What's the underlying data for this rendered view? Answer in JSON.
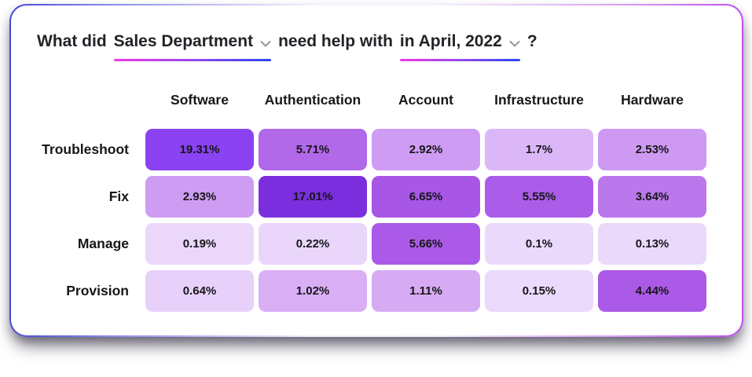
{
  "card": {
    "title": {
      "prefix": "What did",
      "department_dropdown": "Sales Department",
      "middle": "need help with",
      "period_dropdown": "in April, 2022",
      "suffix": "?"
    },
    "columns": [
      "Software",
      "Authentication",
      "Account",
      "Infrastructure",
      "Hardware"
    ],
    "rows": [
      {
        "label": "Troubleshoot",
        "cells": [
          {
            "text": "19.31%",
            "bg": "#8a42f2"
          },
          {
            "text": "5.71%",
            "bg": "#b169ea"
          },
          {
            "text": "2.92%",
            "bg": "#cf9cf3"
          },
          {
            "text": "1.7%",
            "bg": "#dcb7f7"
          },
          {
            "text": "2.53%",
            "bg": "#cd99f1"
          }
        ]
      },
      {
        "label": "Fix",
        "cells": [
          {
            "text": "2.93%",
            "bg": "#cf9cf3"
          },
          {
            "text": "17.01%",
            "bg": "#7b2ede"
          },
          {
            "text": "6.65%",
            "bg": "#a856e6"
          },
          {
            "text": "5.55%",
            "bg": "#ab5ce8"
          },
          {
            "text": "3.64%",
            "bg": "#bb78ec"
          }
        ]
      },
      {
        "label": "Manage",
        "cells": [
          {
            "text": "0.19%",
            "bg": "#ead7fa"
          },
          {
            "text": "0.22%",
            "bg": "#e9d6fa"
          },
          {
            "text": "5.66%",
            "bg": "#aa5ae7"
          },
          {
            "text": "0.1%",
            "bg": "#ebd9fb"
          },
          {
            "text": "0.13%",
            "bg": "#ebd9fb"
          }
        ]
      },
      {
        "label": "Provision",
        "cells": [
          {
            "text": "0.64%",
            "bg": "#e7d0f9"
          },
          {
            "text": "1.02%",
            "bg": "#d9aef5"
          },
          {
            "text": "1.11%",
            "bg": "#d7abf4"
          },
          {
            "text": "0.15%",
            "bg": "#ebdafb"
          },
          {
            "text": "4.44%",
            "bg": "#ab5ae8"
          }
        ]
      }
    ]
  },
  "colors": {
    "underline_gradient_start": "#f238e9",
    "underline_gradient_end": "#2b46f2",
    "card_border_left": "#4348d6",
    "card_border_right": "#c04ef2",
    "heatmap_low": "#ebdafb",
    "heatmap_high": "#7b2ede",
    "cell_text": "#161618",
    "title_text": "#222228",
    "chevron": "#8a8a8a"
  },
  "chart_data": {
    "type": "heatmap",
    "title": "What did Sales Department need help with in April, 2022?",
    "x_categories": [
      "Software",
      "Authentication",
      "Account",
      "Infrastructure",
      "Hardware"
    ],
    "y_categories": [
      "Troubleshoot",
      "Fix",
      "Manage",
      "Provision"
    ],
    "values": [
      [
        19.31,
        5.71,
        2.92,
        1.7,
        2.53
      ],
      [
        2.93,
        17.01,
        6.65,
        5.55,
        3.64
      ],
      [
        0.19,
        0.22,
        5.66,
        0.1,
        0.13
      ],
      [
        0.64,
        1.02,
        1.11,
        0.15,
        4.44
      ]
    ],
    "unit": "%",
    "legend": "none",
    "color_scale": [
      "#ebdafb",
      "#7b2ede"
    ]
  }
}
